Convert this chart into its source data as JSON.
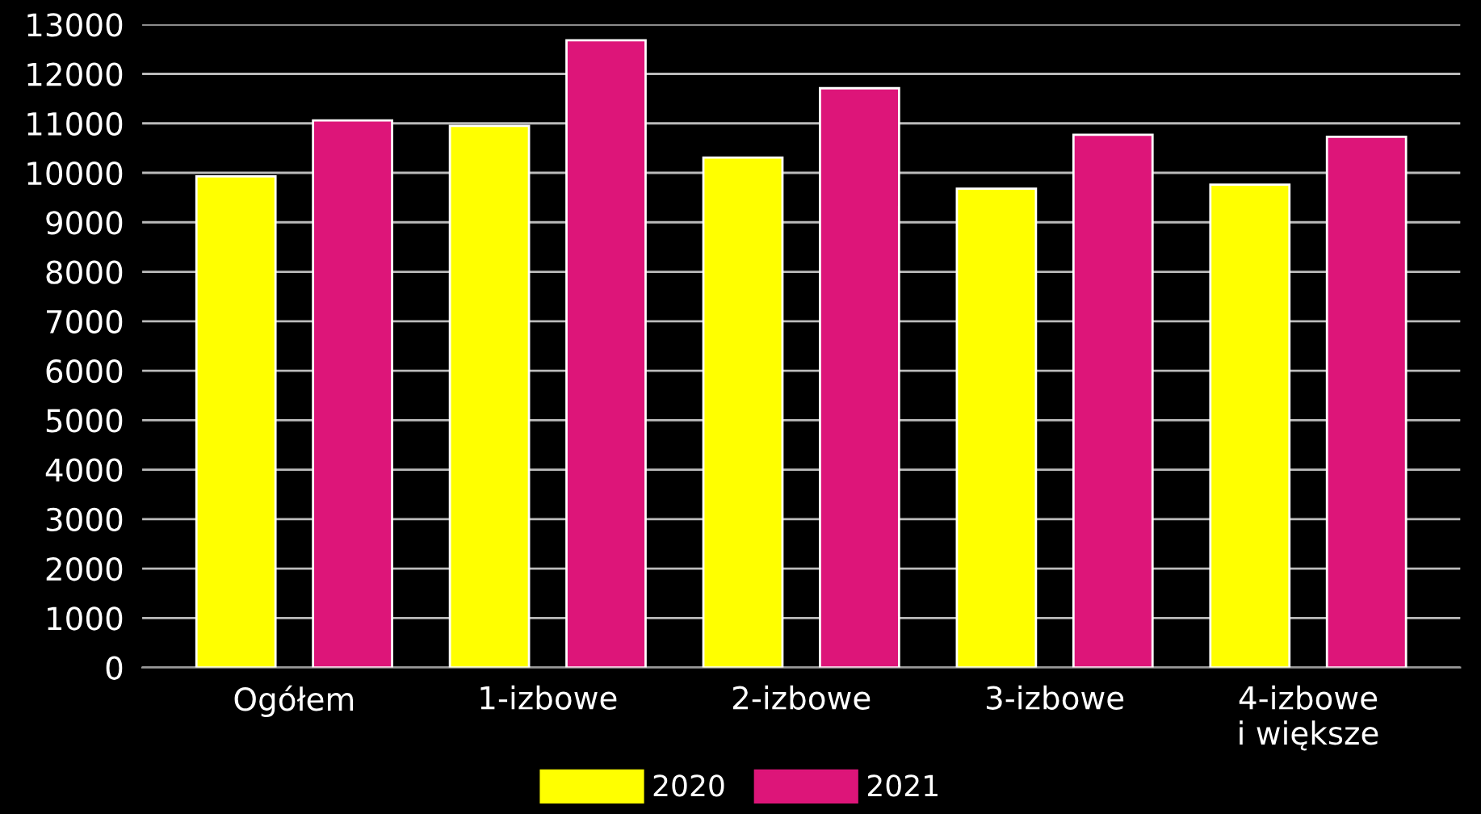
{
  "chart_data": {
    "type": "bar",
    "categories": [
      "Ogółem",
      "1-izbowe",
      "2-izbowe",
      "3-izbowe",
      "4-izbowe\ni większe"
    ],
    "series": [
      {
        "name": "2020",
        "color": "#ffff00",
        "values": [
          9930,
          10950,
          10310,
          9680,
          9760
        ]
      },
      {
        "name": "2021",
        "color": "#dd1579",
        "values": [
          11060,
          12680,
          11710,
          10770,
          10730
        ]
      }
    ],
    "ylim": [
      0,
      13000
    ],
    "yticks": [
      0,
      1000,
      2000,
      3000,
      4000,
      5000,
      6000,
      7000,
      8000,
      9000,
      10000,
      11000,
      12000,
      13000
    ],
    "grid": "y",
    "legend": "bottom"
  }
}
